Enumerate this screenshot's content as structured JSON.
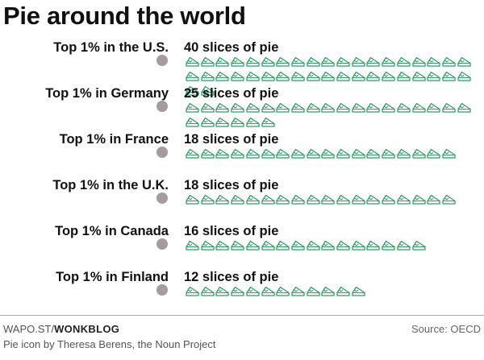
{
  "colors": {
    "pie_stroke": "#2e9e62",
    "dot": "#a79c9c",
    "text": "#111111"
  },
  "icon": "pie-slice-icon",
  "chart_data": {
    "type": "pictograph",
    "title": "Pie around the world",
    "unit": "slices of pie",
    "categories": [
      "Top 1% in the U.S.",
      "Top 1% in Germany",
      "Top 1% in France",
      "Top 1% in the U.K.",
      "Top 1% in Canada",
      "Top 1% in Finland"
    ],
    "values": [
      40,
      25,
      18,
      18,
      16,
      12
    ],
    "value_labels": [
      "40 slices of pie",
      "25 slices of pie",
      "18 slices of pie",
      "18 slices of pie",
      "16 slices of pie",
      "12 slices of pie"
    ]
  },
  "footer": {
    "site": "WAPO.ST/",
    "section": "WONKBLOG",
    "credit": "Pie icon by Theresa Berens, the Noun Project",
    "source": "Source: OECD"
  }
}
